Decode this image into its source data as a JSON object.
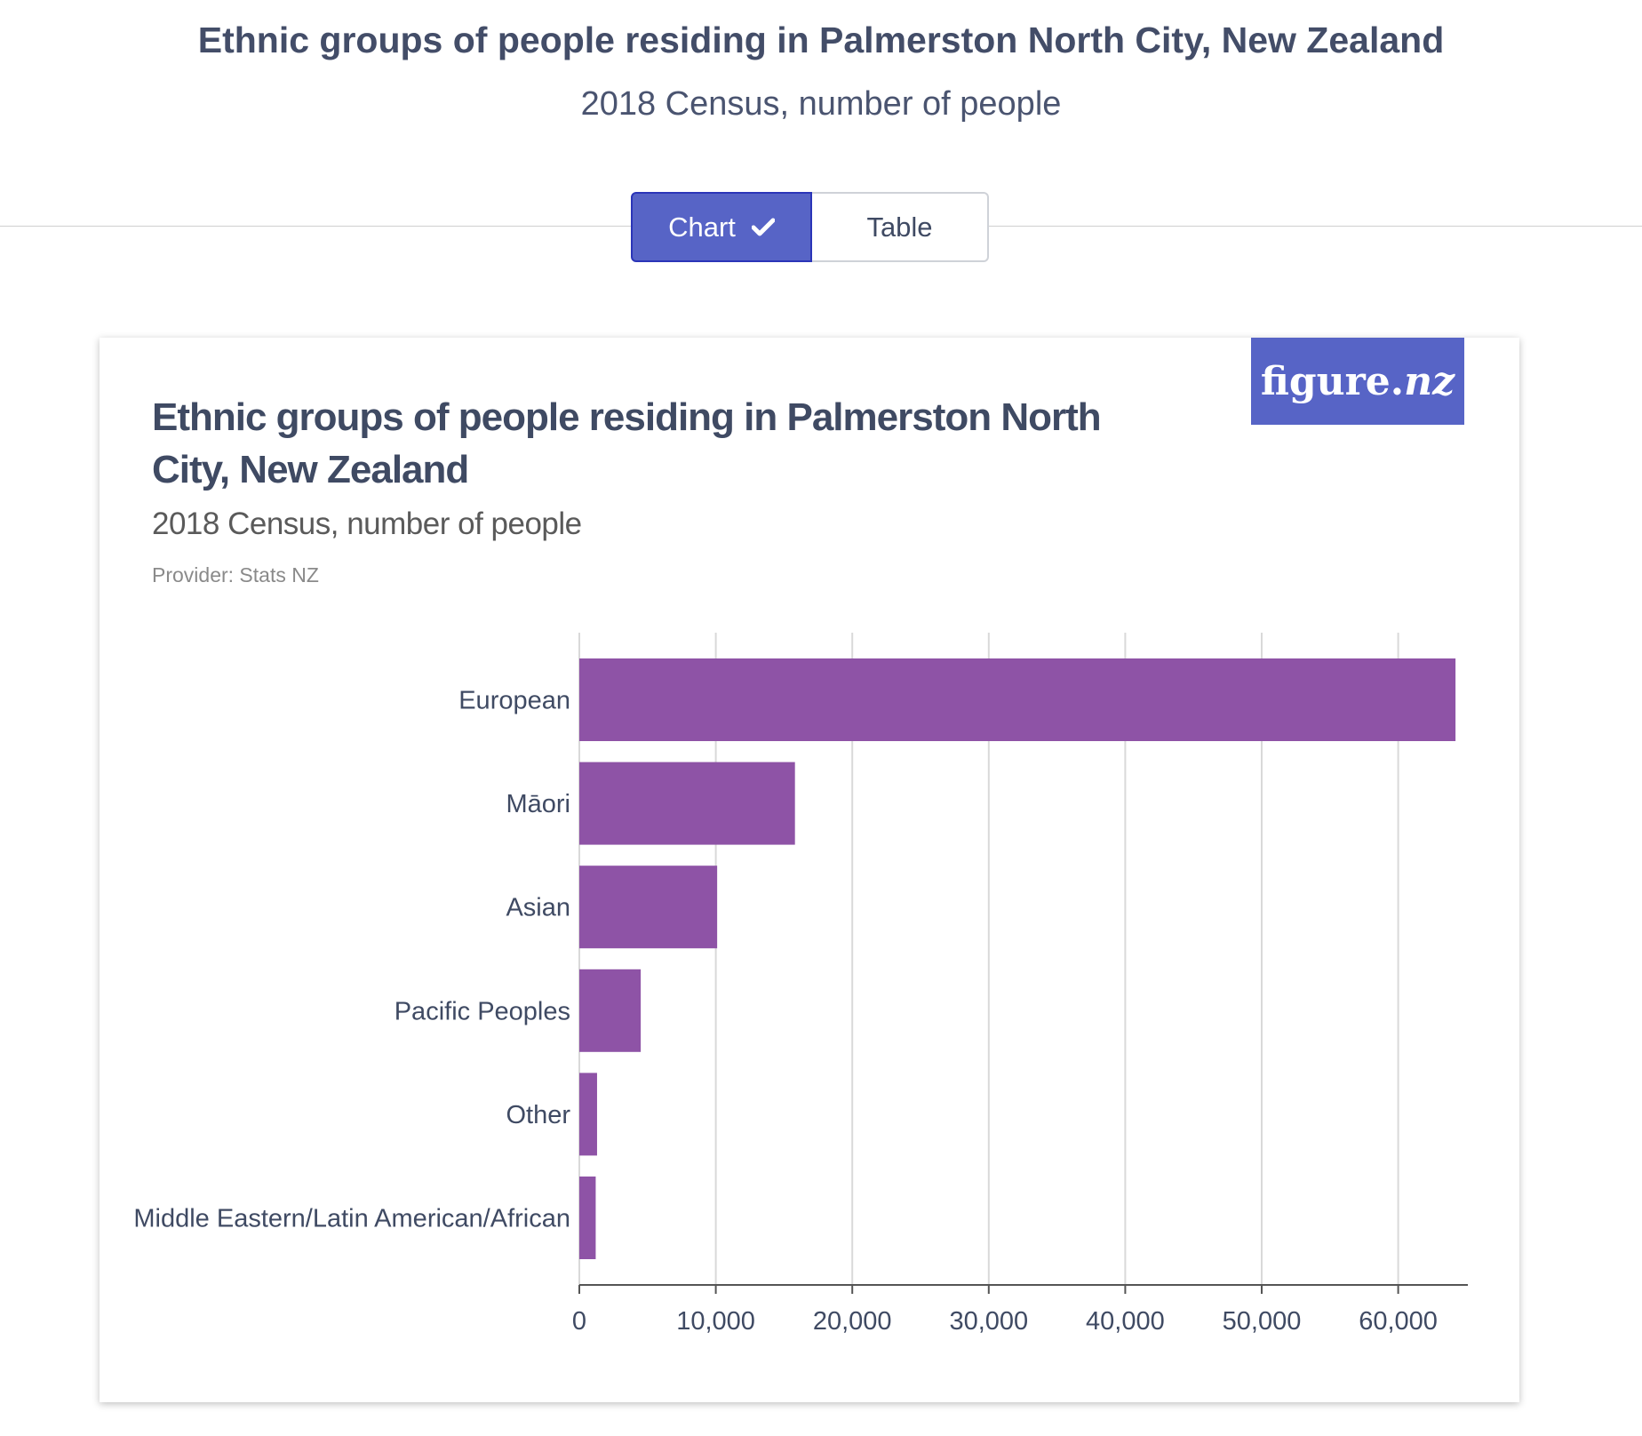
{
  "header": {
    "title": "Ethnic groups of people residing in Palmerston North City, New Zealand",
    "subtitle": "2018 Census, number of people"
  },
  "toggle": {
    "chart_label": "Chart",
    "table_label": "Table",
    "selected": "Chart"
  },
  "card": {
    "logo_text": "figure.",
    "logo_suffix": "nz",
    "title": "Ethnic groups of people residing in Palmerston North City, New Zealand",
    "subtitle": "2018 Census, number of people",
    "provider": "Provider: Stats NZ"
  },
  "colors": {
    "bar": "#8e53a6",
    "accent": "#5764c6",
    "grid": "#d9d9d9",
    "axis": "#555555"
  },
  "chart_data": {
    "type": "bar",
    "orientation": "horizontal",
    "categories": [
      "European",
      "Māori",
      "Asian",
      "Pacific Peoples",
      "Other",
      "Middle Eastern/Latin American/African"
    ],
    "values": [
      64200,
      15800,
      10100,
      4500,
      1300,
      1200
    ],
    "xlim": [
      0,
      65000
    ],
    "xticks": [
      0,
      10000,
      20000,
      30000,
      40000,
      50000,
      60000
    ],
    "xtick_labels": [
      "0",
      "10,000",
      "20,000",
      "30,000",
      "40,000",
      "50,000",
      "60,000"
    ],
    "grid": true
  }
}
